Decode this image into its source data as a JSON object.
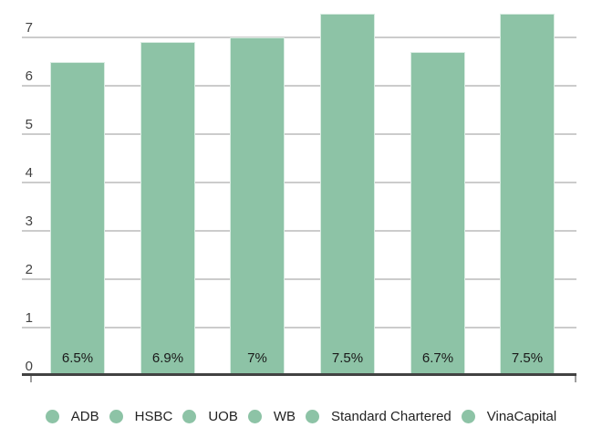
{
  "chart_data": {
    "type": "bar",
    "title": "",
    "xlabel": "",
    "ylabel": "",
    "categories": [
      "ADB",
      "HSBC",
      "UOB",
      "WB",
      "Standard Chartered",
      "VinaCapital"
    ],
    "values": [
      6.5,
      6.9,
      7.0,
      7.5,
      6.7,
      7.5
    ],
    "bar_labels": [
      "6.5%",
      "6.9%",
      "7%",
      "7.5%",
      "6.7%",
      "7.5%"
    ],
    "yticks": [
      0,
      1,
      2,
      3,
      4,
      5,
      6,
      7
    ],
    "ylim": [
      0,
      7.75
    ],
    "grid": true,
    "legend_position": "bottom"
  },
  "legend": {
    "items": [
      "ADB",
      "HSBC",
      "UOB",
      "WB",
      "Standard Chartered",
      "VinaCapital"
    ]
  },
  "colors": {
    "bar_fill": "#8dc3a6",
    "bar_border": "#d9ece2",
    "gridline": "#cccccc",
    "axis_line": "#424242",
    "tick": "#9e9e9e",
    "axis_text": "#424242",
    "bar_label_text": "#1a1a1a",
    "legend_text": "#222222",
    "background": "#ffffff"
  }
}
